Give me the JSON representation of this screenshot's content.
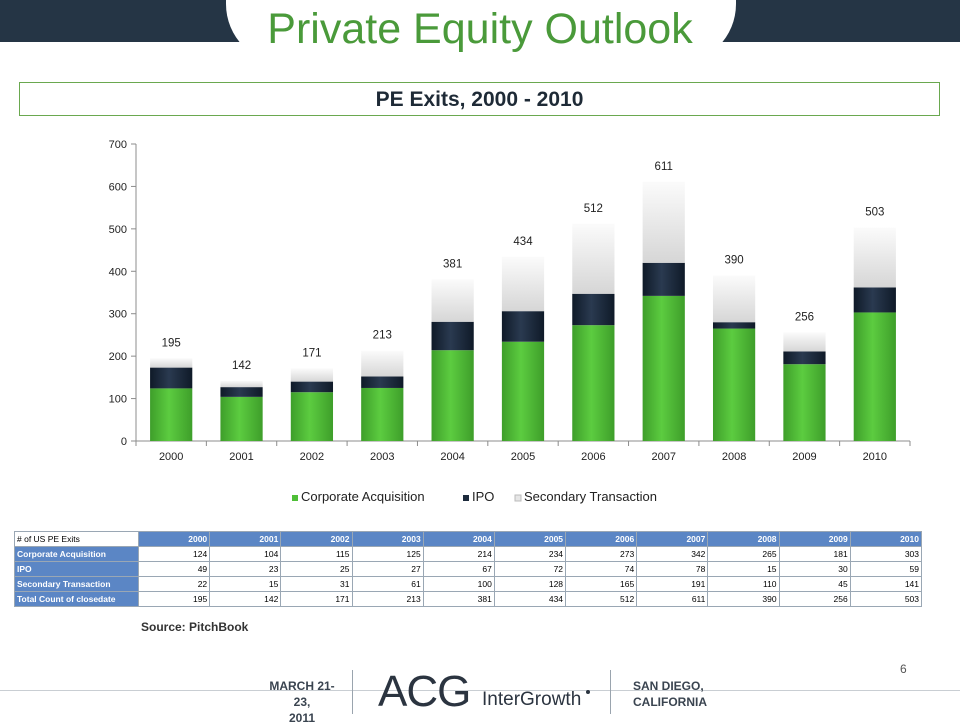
{
  "slide": {
    "title": "Private Equity Outlook",
    "subtitle": "PE Exits, 2000 - 2010",
    "source": "Source: PitchBook",
    "page_number": "6"
  },
  "footer": {
    "date_line1": "MARCH 21-23,",
    "date_line2": "2011",
    "logo_text": "ACG InterGrowth",
    "location_line1": "SAN DIEGO,",
    "location_line2": "CALIFORNIA"
  },
  "colors": {
    "title_green": "#4a9a3a",
    "header_navy": "#253545",
    "corporate": "#4fbf38",
    "ipo": "#1c2a3c",
    "secondary": "#e6e6e6",
    "table_header": "#5b86c5"
  },
  "chart_data": {
    "type": "bar",
    "stacked": true,
    "title": "",
    "xlabel": "",
    "ylabel": "",
    "categories": [
      "2000",
      "2001",
      "2002",
      "2003",
      "2004",
      "2005",
      "2006",
      "2007",
      "2008",
      "2009",
      "2010"
    ],
    "series": [
      {
        "name": "Corporate Acquisition",
        "values": [
          124,
          104,
          115,
          125,
          214,
          234,
          273,
          342,
          265,
          181,
          303
        ]
      },
      {
        "name": "IPO",
        "values": [
          49,
          23,
          25,
          27,
          67,
          72,
          74,
          78,
          15,
          30,
          59
        ]
      },
      {
        "name": "Secondary Transaction",
        "values": [
          22,
          15,
          31,
          61,
          100,
          128,
          165,
          191,
          110,
          45,
          141
        ]
      }
    ],
    "totals": [
      195,
      142,
      171,
      213,
      381,
      434,
      512,
      611,
      390,
      256,
      503
    ],
    "ylim": [
      0,
      700
    ],
    "yticks": [
      0,
      100,
      200,
      300,
      400,
      500,
      600,
      700
    ],
    "legend_position": "bottom",
    "grid": false
  },
  "table": {
    "corner": "# of US PE Exits",
    "years": [
      "2000",
      "2001",
      "2002",
      "2003",
      "2004",
      "2005",
      "2006",
      "2007",
      "2008",
      "2009",
      "2010"
    ],
    "rows": [
      {
        "label": "Corporate Acquisition",
        "values": [
          "124",
          "104",
          "115",
          "125",
          "214",
          "234",
          "273",
          "342",
          "265",
          "181",
          "303"
        ]
      },
      {
        "label": "IPO",
        "values": [
          "49",
          "23",
          "25",
          "27",
          "67",
          "72",
          "74",
          "78",
          "15",
          "30",
          "59"
        ]
      },
      {
        "label": "Secondary Transaction",
        "values": [
          "22",
          "15",
          "31",
          "61",
          "100",
          "128",
          "165",
          "191",
          "110",
          "45",
          "141"
        ]
      },
      {
        "label": "Total Count of closedate",
        "values": [
          "195",
          "142",
          "171",
          "213",
          "381",
          "434",
          "512",
          "611",
          "390",
          "256",
          "503"
        ]
      }
    ]
  }
}
